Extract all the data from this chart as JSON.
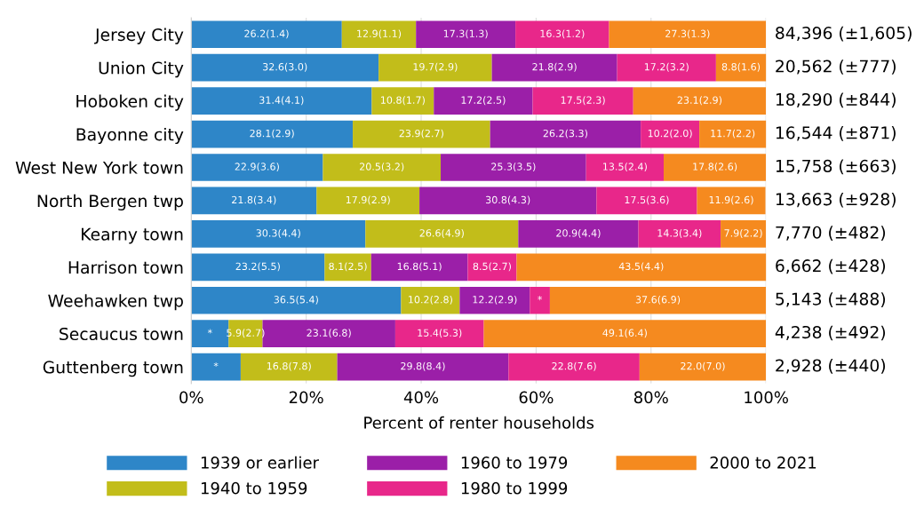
{
  "chart_data": {
    "type": "bar",
    "orientation": "horizontal",
    "stacked": true,
    "xlabel": "Percent of renter households",
    "categories": [
      "Jersey City",
      "Union City",
      "Hoboken city",
      "Bayonne city",
      "West New York town",
      "North Bergen twp",
      "Kearny town",
      "Harrison town",
      "Weehawken twp",
      "Secaucus town",
      "Guttenberg town"
    ],
    "series": [
      {
        "name": "1939 or earlier",
        "color": "#2e86c8",
        "values": [
          26.2,
          32.6,
          31.4,
          28.1,
          22.9,
          21.8,
          30.3,
          23.2,
          36.5,
          6.5,
          8.6
        ],
        "value_labels": [
          "26.2(1.4)",
          "32.6(3.0)",
          "31.4(4.1)",
          "28.1(2.9)",
          "22.9(3.6)",
          "21.8(3.4)",
          "30.3(4.4)",
          "23.2(5.5)",
          "36.5(5.4)",
          "*",
          "*"
        ]
      },
      {
        "name": "1940 to 1959",
        "color": "#c2bd1a",
        "values": [
          12.9,
          19.7,
          10.8,
          23.9,
          20.5,
          17.9,
          26.6,
          8.1,
          10.2,
          5.9,
          16.8
        ],
        "value_labels": [
          "12.9(1.1)",
          "19.7(2.9)",
          "10.8(1.7)",
          "23.9(2.7)",
          "20.5(3.2)",
          "17.9(2.9)",
          "26.6(4.9)",
          "8.1(2.5)",
          "10.2(2.8)",
          "5.9(2.7)",
          "16.8(7.8)"
        ]
      },
      {
        "name": "1960 to 1979",
        "color": "#9b1fa8",
        "values": [
          17.3,
          21.8,
          17.2,
          26.2,
          25.3,
          30.8,
          20.9,
          16.8,
          12.2,
          23.1,
          29.8
        ],
        "value_labels": [
          "17.3(1.3)",
          "21.8(2.9)",
          "17.2(2.5)",
          "26.2(3.3)",
          "25.3(3.5)",
          "30.8(4.3)",
          "20.9(4.4)",
          "16.8(5.1)",
          "12.2(2.9)",
          "23.1(6.8)",
          "29.8(8.4)"
        ]
      },
      {
        "name": "1980 to 1999",
        "color": "#e8278a",
        "values": [
          16.3,
          17.2,
          17.5,
          10.2,
          13.5,
          17.5,
          14.3,
          8.5,
          3.5,
          15.4,
          22.8
        ],
        "value_labels": [
          "16.3(1.2)",
          "17.2(3.2)",
          "17.5(2.3)",
          "10.2(2.0)",
          "13.5(2.4)",
          "17.5(3.6)",
          "14.3(3.4)",
          "8.5(2.7)",
          "*",
          "15.4(5.3)",
          "22.8(7.6)"
        ]
      },
      {
        "name": "2000 to 2021",
        "color": "#f58a1f",
        "values": [
          27.3,
          8.8,
          23.1,
          11.7,
          17.8,
          11.9,
          7.9,
          43.5,
          37.6,
          49.1,
          22.0
        ],
        "value_labels": [
          "27.3(1.3)",
          "8.8(1.6)",
          "23.1(2.9)",
          "11.7(2.2)",
          "17.8(2.6)",
          "11.9(2.6)",
          "7.9(2.2)",
          "43.5(4.4)",
          "37.6(6.9)",
          "49.1(6.4)",
          "22.0(7.0)"
        ]
      }
    ],
    "annotations": [
      "84,396 (±1,605)",
      "20,562 (±777)",
      "18,290 (±844)",
      "16,544 (±871)",
      "15,758 (±663)",
      "13,663 (±928)",
      "7,770 (±482)",
      "6,662 (±428)",
      "5,143 (±488)",
      "4,238 (±492)",
      "2,928 (±440)"
    ],
    "xlim": [
      0,
      100
    ],
    "xticks": [
      {
        "value": 0,
        "label": "0%"
      },
      {
        "value": 20,
        "label": "20%"
      },
      {
        "value": 40,
        "label": "40%"
      },
      {
        "value": 60,
        "label": "60%"
      },
      {
        "value": 80,
        "label": "80%"
      },
      {
        "value": 100,
        "label": "100%"
      }
    ],
    "grid": "x",
    "legend": "bottom"
  }
}
